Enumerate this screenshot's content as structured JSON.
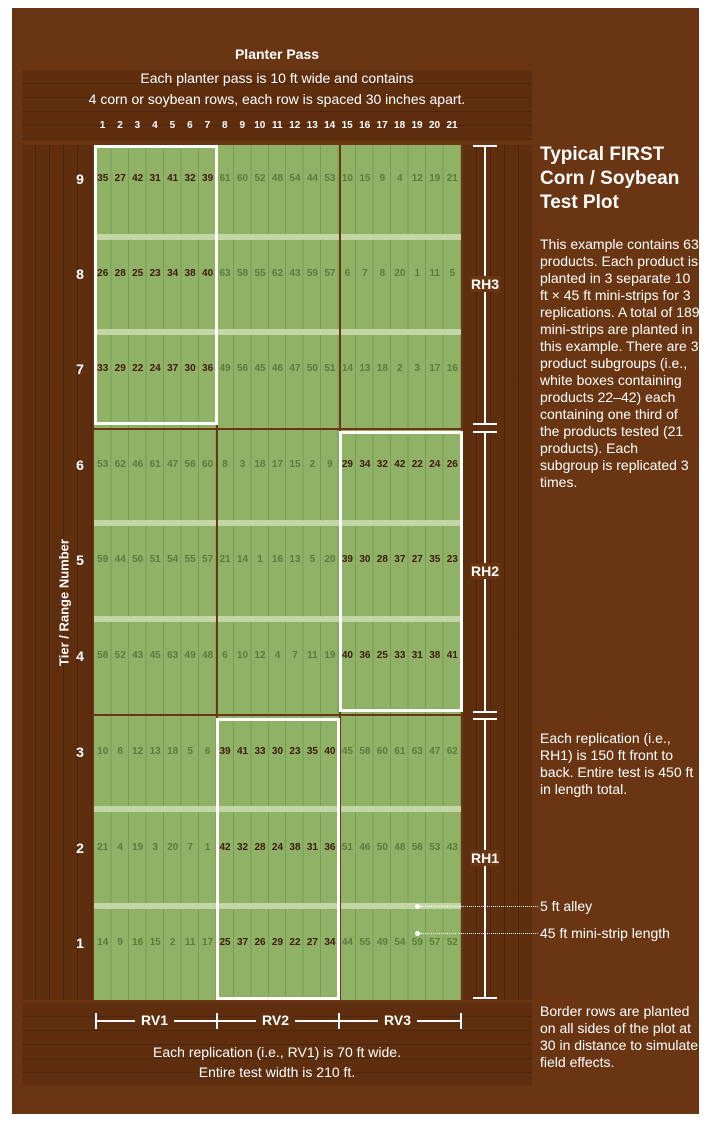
{
  "header": {
    "title": "Planter Pass",
    "line1": "Each planter pass is 10 ft wide and contains",
    "line2": "4 corn or soybean rows, each row is spaced 30 inches apart."
  },
  "column_numbers": [
    "1",
    "2",
    "3",
    "4",
    "5",
    "6",
    "7",
    "8",
    "9",
    "10",
    "11",
    "12",
    "13",
    "14",
    "15",
    "16",
    "17",
    "18",
    "19",
    "20",
    "21"
  ],
  "tier_label": "Tier / Range Number",
  "tiers": [
    {
      "label": "9",
      "values": [
        "35",
        "27",
        "42",
        "31",
        "41",
        "32",
        "39",
        "61",
        "60",
        "52",
        "48",
        "54",
        "44",
        "53",
        "10",
        "15",
        "9",
        "4",
        "12",
        "19",
        "21"
      ]
    },
    {
      "label": "8",
      "values": [
        "26",
        "28",
        "25",
        "23",
        "34",
        "38",
        "40",
        "63",
        "58",
        "55",
        "62",
        "43",
        "59",
        "57",
        "6",
        "7",
        "8",
        "20",
        "1",
        "11",
        "5"
      ]
    },
    {
      "label": "7",
      "values": [
        "33",
        "29",
        "22",
        "24",
        "37",
        "30",
        "36",
        "49",
        "56",
        "45",
        "46",
        "47",
        "50",
        "51",
        "14",
        "13",
        "18",
        "2",
        "3",
        "17",
        "16"
      ]
    },
    {
      "label": "6",
      "values": [
        "53",
        "62",
        "46",
        "61",
        "47",
        "56",
        "60",
        "8",
        "3",
        "18",
        "17",
        "15",
        "2",
        "9",
        "29",
        "34",
        "32",
        "42",
        "22",
        "24",
        "26"
      ]
    },
    {
      "label": "5",
      "values": [
        "59",
        "44",
        "50",
        "51",
        "54",
        "55",
        "57",
        "21",
        "14",
        "1",
        "16",
        "13",
        "5",
        "20",
        "39",
        "30",
        "28",
        "37",
        "27",
        "35",
        "23"
      ]
    },
    {
      "label": "4",
      "values": [
        "58",
        "52",
        "43",
        "45",
        "63",
        "49",
        "48",
        "6",
        "10",
        "12",
        "4",
        "7",
        "11",
        "19",
        "40",
        "36",
        "25",
        "33",
        "31",
        "38",
        "41"
      ]
    },
    {
      "label": "3",
      "values": [
        "10",
        "8",
        "12",
        "13",
        "18",
        "5",
        "6",
        "39",
        "41",
        "33",
        "30",
        "23",
        "35",
        "40",
        "45",
        "58",
        "60",
        "61",
        "63",
        "47",
        "62"
      ]
    },
    {
      "label": "2",
      "values": [
        "21",
        "4",
        "19",
        "3",
        "20",
        "7",
        "1",
        "42",
        "32",
        "28",
        "24",
        "38",
        "31",
        "36",
        "51",
        "46",
        "50",
        "48",
        "56",
        "53",
        "43"
      ]
    },
    {
      "label": "1",
      "values": [
        "14",
        "9",
        "16",
        "15",
        "2",
        "11",
        "17",
        "25",
        "37",
        "26",
        "29",
        "22",
        "27",
        "34",
        "44",
        "55",
        "49",
        "54",
        "59",
        "57",
        "52"
      ]
    }
  ],
  "replications_horizontal": [
    "RH3",
    "RH2",
    "RH1"
  ],
  "replications_vertical": [
    "RV1",
    "RV2",
    "RV3"
  ],
  "side_panel": {
    "title": "Typical FIRST Corn / Soybean Test Plot",
    "paragraph1": "This example contains 63 products. Each product is planted in 3 separate 10 ft × 45 ft mini-strips for 3 replications. A total of 189 mini-strips are planted in this example. There are 3 product subgroups (i.e., white boxes containing products 22–42) each containing one third of the products tested (21 products). Each subgroup is replicated 3 times.",
    "paragraph2": "Each replication (i.e., RH1) is 150 ft front to back. Entire test is 450 ft in length total.",
    "paragraph3": "Border rows are planted on all sides of the plot at 30 in distance to simulate field effects."
  },
  "callouts": {
    "alley": "5 ft alley",
    "strip": "45 ft mini-strip length"
  },
  "footer": {
    "line1": "Each replication (i.e., RV1) is 70 ft wide.",
    "line2": "Entire test width is 210 ft."
  },
  "colors": {
    "background": "#6a3512",
    "field": "#8fb266",
    "alley": "#c2d6a6",
    "highlight_box": "#ffffff"
  }
}
